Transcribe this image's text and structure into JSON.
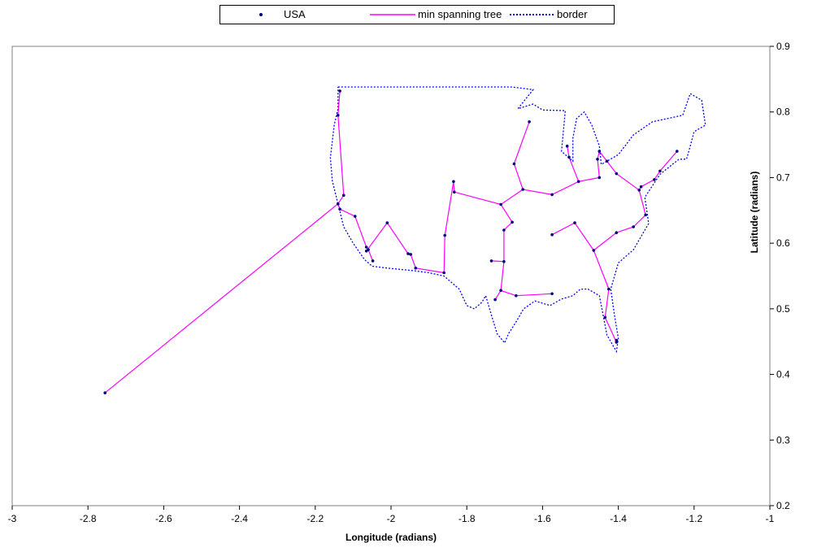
{
  "chart_data": {
    "type": "scatter",
    "xlabel": "Longitude (radians)",
    "ylabel": "Latitude (radians)",
    "xlim": [
      -3,
      -1
    ],
    "ylim": [
      0.2,
      0.9
    ],
    "x_ticks": [
      "-3",
      "-2.8",
      "-2.6",
      "-2.4",
      "-2.2",
      "-2",
      "-1.8",
      "-1.6",
      "-1.4",
      "-1.2",
      "-1"
    ],
    "y_ticks": [
      "0.2",
      "0.3",
      "0.4",
      "0.5",
      "0.6",
      "0.7",
      "0.8",
      "0.9"
    ],
    "legend_position": "top",
    "grid": false,
    "series": [
      {
        "name": "USA",
        "style": "markers",
        "color": "#000080",
        "points": [
          [
            -2.755,
            0.372
          ],
          [
            -2.135,
            0.832
          ],
          [
            -2.14,
            0.795
          ],
          [
            -2.14,
            0.66
          ],
          [
            -2.125,
            0.673
          ],
          [
            -2.135,
            0.652
          ],
          [
            -2.095,
            0.641
          ],
          [
            -2.065,
            0.594
          ],
          [
            -2.06,
            0.59
          ],
          [
            -2.065,
            0.588
          ],
          [
            -2.048,
            0.573
          ],
          [
            -2.01,
            0.631
          ],
          [
            -1.955,
            0.584
          ],
          [
            -1.948,
            0.583
          ],
          [
            -1.935,
            0.562
          ],
          [
            -1.86,
            0.555
          ],
          [
            -1.858,
            0.612
          ],
          [
            -1.835,
            0.694
          ],
          [
            -1.833,
            0.678
          ],
          [
            -1.735,
            0.573
          ],
          [
            -1.702,
            0.572
          ],
          [
            -1.702,
            0.62
          ],
          [
            -1.68,
            0.632
          ],
          [
            -1.71,
            0.659
          ],
          [
            -1.725,
            0.514
          ],
          [
            -1.71,
            0.528
          ],
          [
            -1.67,
            0.52
          ],
          [
            -1.575,
            0.523
          ],
          [
            -1.675,
            0.721
          ],
          [
            -1.635,
            0.785
          ],
          [
            -1.652,
            0.682
          ],
          [
            -1.575,
            0.674
          ],
          [
            -1.535,
            0.748
          ],
          [
            -1.53,
            0.731
          ],
          [
            -1.505,
            0.694
          ],
          [
            -1.45,
            0.7
          ],
          [
            -1.455,
            0.728
          ],
          [
            -1.45,
            0.74
          ],
          [
            -1.43,
            0.725
          ],
          [
            -1.405,
            0.706
          ],
          [
            -1.345,
            0.681
          ],
          [
            -1.34,
            0.686
          ],
          [
            -1.305,
            0.697
          ],
          [
            -1.29,
            0.71
          ],
          [
            -1.245,
            0.74
          ],
          [
            -1.328,
            0.643
          ],
          [
            -1.36,
            0.625
          ],
          [
            -1.405,
            0.616
          ],
          [
            -1.575,
            0.613
          ],
          [
            -1.515,
            0.631
          ],
          [
            -1.465,
            0.589
          ],
          [
            -1.425,
            0.53
          ],
          [
            -1.435,
            0.487
          ],
          [
            -1.405,
            0.452
          ],
          [
            -1.405,
            0.449
          ]
        ]
      },
      {
        "name": "min spanning tree",
        "style": "line",
        "color": "#ff00ff",
        "segments": [
          [
            [
              -2.755,
              0.372
            ],
            [
              -2.14,
              0.66
            ]
          ],
          [
            [
              -2.135,
              0.832
            ],
            [
              -2.14,
              0.795
            ],
            [
              -2.125,
              0.673
            ],
            [
              -2.14,
              0.66
            ],
            [
              -2.135,
              0.652
            ],
            [
              -2.095,
              0.641
            ],
            [
              -2.065,
              0.594
            ],
            [
              -2.06,
              0.59
            ],
            [
              -2.048,
              0.573
            ]
          ],
          [
            [
              -2.065,
              0.588
            ],
            [
              -2.01,
              0.631
            ],
            [
              -1.955,
              0.584
            ],
            [
              -1.948,
              0.583
            ],
            [
              -1.935,
              0.562
            ],
            [
              -1.86,
              0.555
            ],
            [
              -1.858,
              0.612
            ],
            [
              -1.835,
              0.694
            ],
            [
              -1.833,
              0.678
            ],
            [
              -1.71,
              0.659
            ],
            [
              -1.652,
              0.682
            ],
            [
              -1.575,
              0.674
            ],
            [
              -1.505,
              0.694
            ],
            [
              -1.45,
              0.7
            ],
            [
              -1.455,
              0.728
            ],
            [
              -1.45,
              0.74
            ],
            [
              -1.43,
              0.725
            ],
            [
              -1.405,
              0.706
            ],
            [
              -1.345,
              0.681
            ],
            [
              -1.34,
              0.686
            ],
            [
              -1.305,
              0.697
            ],
            [
              -1.29,
              0.71
            ],
            [
              -1.245,
              0.74
            ]
          ],
          [
            [
              -1.652,
              0.682
            ],
            [
              -1.675,
              0.721
            ],
            [
              -1.635,
              0.785
            ]
          ],
          [
            [
              -1.505,
              0.694
            ],
            [
              -1.53,
              0.731
            ],
            [
              -1.535,
              0.748
            ]
          ],
          [
            [
              -1.71,
              0.659
            ],
            [
              -1.68,
              0.632
            ],
            [
              -1.702,
              0.62
            ],
            [
              -1.702,
              0.572
            ],
            [
              -1.735,
              0.573
            ]
          ],
          [
            [
              -1.702,
              0.572
            ],
            [
              -1.71,
              0.528
            ],
            [
              -1.725,
              0.514
            ]
          ],
          [
            [
              -1.71,
              0.528
            ],
            [
              -1.67,
              0.52
            ],
            [
              -1.575,
              0.523
            ]
          ],
          [
            [
              -1.345,
              0.681
            ],
            [
              -1.328,
              0.643
            ],
            [
              -1.36,
              0.625
            ],
            [
              -1.405,
              0.616
            ],
            [
              -1.465,
              0.589
            ],
            [
              -1.425,
              0.53
            ],
            [
              -1.435,
              0.487
            ],
            [
              -1.405,
              0.449
            ]
          ],
          [
            [
              -1.465,
              0.589
            ],
            [
              -1.515,
              0.631
            ],
            [
              -1.575,
              0.613
            ]
          ]
        ]
      },
      {
        "name": "border",
        "style": "dotted-line",
        "color": "#0000ff",
        "points": [
          [
            -2.14,
            0.838
          ],
          [
            -2.135,
            0.838
          ],
          [
            -1.68,
            0.838
          ],
          [
            -1.625,
            0.834
          ],
          [
            -1.665,
            0.805
          ],
          [
            -1.625,
            0.812
          ],
          [
            -1.6,
            0.803
          ],
          [
            -1.54,
            0.802
          ],
          [
            -1.55,
            0.74
          ],
          [
            -1.52,
            0.725
          ],
          [
            -1.52,
            0.76
          ],
          [
            -1.51,
            0.79
          ],
          [
            -1.49,
            0.8
          ],
          [
            -1.47,
            0.78
          ],
          [
            -1.45,
            0.748
          ],
          [
            -1.445,
            0.72
          ],
          [
            -1.4,
            0.735
          ],
          [
            -1.36,
            0.765
          ],
          [
            -1.31,
            0.785
          ],
          [
            -1.27,
            0.79
          ],
          [
            -1.23,
            0.795
          ],
          [
            -1.21,
            0.828
          ],
          [
            -1.18,
            0.818
          ],
          [
            -1.17,
            0.78
          ],
          [
            -1.2,
            0.77
          ],
          [
            -1.21,
            0.748
          ],
          [
            -1.22,
            0.728
          ],
          [
            -1.24,
            0.728
          ],
          [
            -1.29,
            0.705
          ],
          [
            -1.33,
            0.67
          ],
          [
            -1.32,
            0.63
          ],
          [
            -1.36,
            0.59
          ],
          [
            -1.4,
            0.57
          ],
          [
            -1.42,
            0.53
          ],
          [
            -1.41,
            0.49
          ],
          [
            -1.4,
            0.455
          ],
          [
            -1.405,
            0.435
          ],
          [
            -1.43,
            0.46
          ],
          [
            -1.44,
            0.49
          ],
          [
            -1.45,
            0.52
          ],
          [
            -1.48,
            0.53
          ],
          [
            -1.5,
            0.53
          ],
          [
            -1.52,
            0.52
          ],
          [
            -1.55,
            0.515
          ],
          [
            -1.58,
            0.505
          ],
          [
            -1.62,
            0.512
          ],
          [
            -1.65,
            0.5
          ],
          [
            -1.67,
            0.48
          ],
          [
            -1.69,
            0.462
          ],
          [
            -1.7,
            0.448
          ],
          [
            -1.72,
            0.462
          ],
          [
            -1.74,
            0.5
          ],
          [
            -1.75,
            0.52
          ],
          [
            -1.76,
            0.51
          ],
          [
            -1.78,
            0.5
          ],
          [
            -1.8,
            0.505
          ],
          [
            -1.82,
            0.53
          ],
          [
            -1.86,
            0.55
          ],
          [
            -1.9,
            0.555
          ],
          [
            -1.94,
            0.558
          ],
          [
            -2.01,
            0.562
          ],
          [
            -2.05,
            0.565
          ],
          [
            -2.07,
            0.575
          ],
          [
            -2.1,
            0.6
          ],
          [
            -2.125,
            0.625
          ],
          [
            -2.14,
            0.66
          ],
          [
            -2.155,
            0.695
          ],
          [
            -2.16,
            0.73
          ],
          [
            -2.15,
            0.78
          ],
          [
            -2.14,
            0.805
          ],
          [
            -2.14,
            0.838
          ]
        ]
      }
    ]
  }
}
